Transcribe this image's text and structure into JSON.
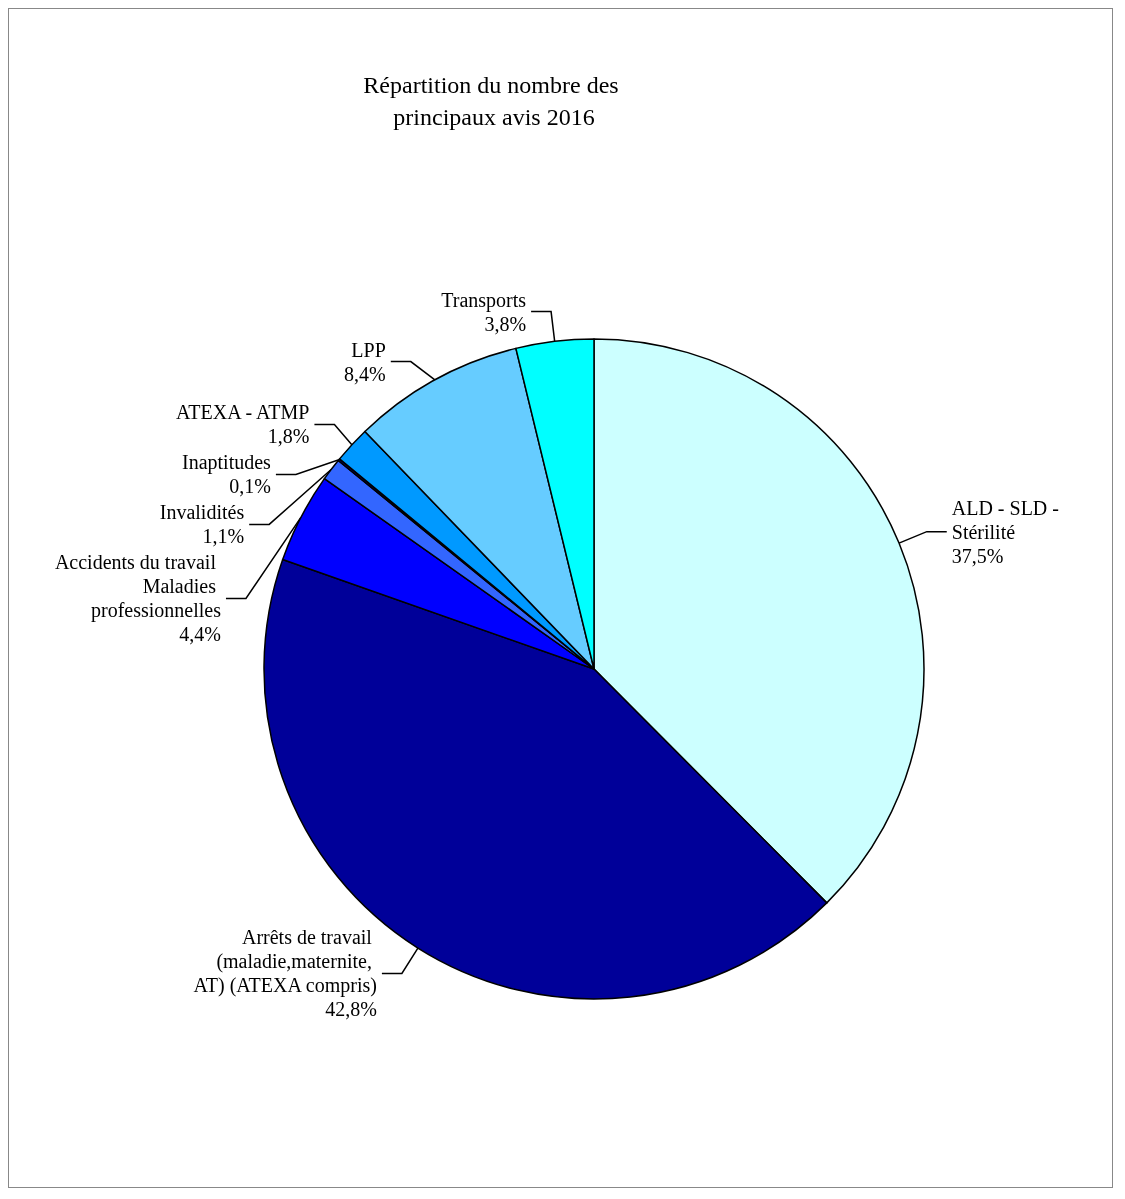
{
  "chart_data": {
    "type": "pie",
    "title": "Répartition du nombre des principaux avis 2016",
    "categories": [
      "ALD - SLD - Stérilité",
      "Arrêts de travail (maladie,maternite, AT) (ATEXA compris)",
      "Accidents du travail Maladies professionnelles",
      "Invalidités",
      "Inaptitudes",
      "ATEXA - ATMP",
      "LPP",
      "Transports"
    ],
    "values": [
      37.5,
      42.8,
      4.4,
      1.1,
      0.1,
      1.8,
      8.4,
      3.8
    ],
    "value_labels": [
      "37,5%",
      "42,8%",
      "4,4%",
      "1,1%",
      "0,1%",
      "1,8%",
      "8,4%",
      "3,8%"
    ],
    "colors": [
      "#ccffff",
      "#000099",
      "#0000ff",
      "#3366ff",
      "#000080",
      "#0099ff",
      "#66ccff",
      "#00ffff"
    ],
    "legend": false
  }
}
